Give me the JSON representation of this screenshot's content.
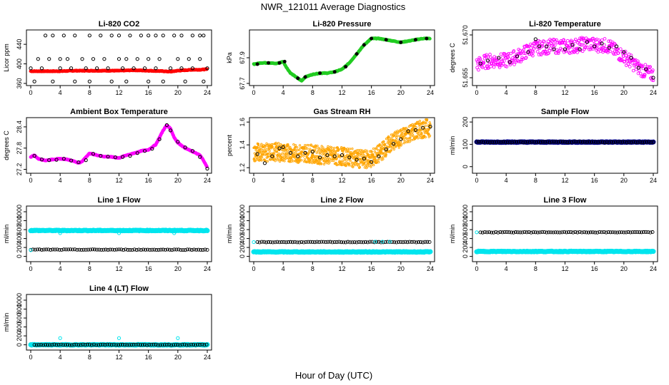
{
  "figure": {
    "title": "NWR_121011  Average Diagnostics",
    "xlabel": "Hour of Day (UTC)"
  },
  "chart_data": [
    {
      "id": "co2",
      "type": "scatter",
      "title": "Li-820 CO2",
      "xlabel": "",
      "ylabel": "Licor ppm",
      "xlim": [
        0,
        24
      ],
      "xticks": [
        0,
        4,
        8,
        12,
        16,
        20,
        24
      ],
      "ylim": [
        360,
        465
      ],
      "yticks": [
        360,
        400,
        440
      ],
      "ytick_labels": [
        "360",
        "400",
        "440"
      ],
      "series": [
        {
          "style": "red-line",
          "color": "#ff0000",
          "x": [
            0,
            2,
            4,
            6,
            8,
            10,
            12,
            14,
            16,
            18,
            19,
            20,
            21,
            22,
            23,
            24
          ],
          "y": [
            385,
            385,
            385,
            386,
            386,
            386,
            386,
            387,
            386,
            385,
            384,
            386,
            387,
            388,
            388,
            389
          ]
        },
        {
          "style": "open-circle",
          "color": "#000000",
          "x": [
            2,
            3,
            4.5,
            6,
            8,
            9.5,
            11,
            12,
            13.5,
            15,
            16,
            17,
            18,
            19.5,
            20.5,
            22,
            23,
            23.5,
            1,
            2.5,
            4,
            5,
            7,
            8.5,
            10,
            12,
            13,
            14.5,
            16,
            17.5,
            20,
            21.5,
            23,
            0,
            1.5,
            4,
            5.5,
            7.5,
            9,
            10.5,
            12.5,
            14,
            15.5,
            17,
            19,
            20.5,
            22,
            24,
            0.5,
            3,
            6,
            8,
            11,
            13,
            16,
            18,
            21,
            23.5
          ],
          "y": [
            458,
            458,
            458,
            458,
            458,
            458,
            458,
            458,
            458,
            458,
            458,
            458,
            458,
            458,
            458,
            458,
            458,
            458,
            410,
            410,
            410,
            410,
            410,
            410,
            410,
            410,
            410,
            410,
            410,
            410,
            410,
            410,
            410,
            391,
            391,
            391,
            391,
            391,
            391,
            391,
            391,
            391,
            391,
            391,
            391,
            391,
            391,
            391,
            364,
            364,
            364,
            364,
            364,
            364,
            364,
            364,
            364,
            364
          ]
        }
      ]
    },
    {
      "id": "pressure",
      "type": "scatter",
      "title": "Li-820 Pressure",
      "xlabel": "",
      "ylabel": "kPa",
      "xlim": [
        0,
        24
      ],
      "xticks": [
        0,
        4,
        8,
        12,
        16,
        20,
        24
      ],
      "ylim": [
        67.7,
        68.1
      ],
      "yticks": [
        67.7,
        67.9
      ],
      "ytick_labels": [
        "67.7",
        "67.9"
      ],
      "series": [
        {
          "style": "green-line",
          "color": "#22cc22",
          "x": [
            0,
            1,
            2,
            3,
            3.5,
            4,
            4.5,
            5,
            6,
            6.5,
            7,
            8,
            9,
            10,
            11,
            12,
            13,
            14,
            15,
            16,
            17,
            18,
            19,
            20,
            21,
            22,
            23,
            24
          ],
          "y": [
            67.85,
            67.86,
            67.86,
            67.855,
            67.86,
            67.87,
            67.82,
            67.78,
            67.74,
            67.72,
            67.75,
            67.77,
            67.78,
            67.78,
            67.79,
            67.81,
            67.86,
            67.93,
            68.0,
            68.05,
            68.05,
            68.04,
            68.03,
            68.02,
            68.03,
            68.04,
            68.05,
            68.05
          ]
        },
        {
          "style": "filled-circle",
          "color": "#000000",
          "x": [
            0.5,
            2,
            3.5,
            4.2,
            6,
            7,
            9,
            11,
            12.5,
            14,
            15,
            16,
            18,
            20,
            22,
            23.5
          ],
          "y": [
            67.85,
            67.86,
            67.86,
            67.87,
            67.74,
            67.75,
            67.78,
            67.79,
            67.83,
            67.93,
            68.0,
            68.05,
            68.04,
            68.02,
            68.04,
            68.05
          ]
        }
      ]
    },
    {
      "id": "licor_temp",
      "type": "scatter",
      "title": "Li-820 Temperature",
      "xlabel": "",
      "ylabel": "degrees C",
      "xlim": [
        0,
        24
      ],
      "xticks": [
        0,
        4,
        8,
        12,
        16,
        20,
        24
      ],
      "ylim": [
        51.653,
        51.671
      ],
      "yticks": [
        51.655,
        51.67
      ],
      "ytick_labels": [
        "51.655",
        "51.670"
      ],
      "series": [
        {
          "style": "magenta-circle-band",
          "color": "#ff00ff",
          "spread": 0.0025,
          "x": [
            0,
            1,
            2,
            3,
            4,
            5,
            6,
            7,
            8,
            9,
            10,
            11,
            12,
            13,
            14,
            15,
            16,
            17,
            18,
            19,
            20,
            21,
            22,
            23,
            24
          ],
          "y": [
            51.6595,
            51.6605,
            51.661,
            51.661,
            51.661,
            51.662,
            51.663,
            51.6645,
            51.6655,
            51.6655,
            51.666,
            51.666,
            51.666,
            51.666,
            51.6665,
            51.667,
            51.6665,
            51.6665,
            51.666,
            51.664,
            51.6625,
            51.6605,
            51.6585,
            51.657,
            51.656
          ]
        },
        {
          "style": "open-circle",
          "color": "#000000",
          "x": [
            0.5,
            1.5,
            3,
            4.5,
            5.5,
            7,
            8,
            8.5,
            9.5,
            10.5,
            12,
            13,
            14,
            15,
            16,
            17,
            18,
            19,
            20,
            21,
            22,
            23,
            24
          ],
          "y": [
            51.66,
            51.661,
            51.662,
            51.6605,
            51.6625,
            51.664,
            51.6685,
            51.666,
            51.666,
            51.665,
            51.665,
            51.6665,
            51.665,
            51.6675,
            51.666,
            51.667,
            51.6655,
            51.666,
            51.664,
            51.662,
            51.6585,
            51.658,
            51.655
          ]
        }
      ]
    },
    {
      "id": "box_temp",
      "type": "scatter",
      "title": "Ambient Box Temperature",
      "xlabel": "",
      "ylabel": "degrees C",
      "xlim": [
        0,
        24
      ],
      "xticks": [
        0,
        4,
        8,
        12,
        16,
        20,
        24
      ],
      "ylim": [
        27.15,
        28.6
      ],
      "yticks": [
        27.2,
        27.8,
        28.4
      ],
      "ytick_labels": [
        "27.2",
        "27.8",
        "28.4"
      ],
      "series": [
        {
          "style": "magenta-line",
          "color": "#ff00ff",
          "x": [
            0,
            0.5,
            1,
            2,
            3,
            4,
            5,
            6,
            6.5,
            7,
            7.5,
            8,
            9,
            10,
            11,
            12,
            13,
            14,
            15,
            16,
            17,
            18,
            18.5,
            19,
            19.5,
            20,
            21,
            22,
            23,
            23.5,
            24
          ],
          "y": [
            27.55,
            27.6,
            27.5,
            27.45,
            27.48,
            27.5,
            27.48,
            27.42,
            27.38,
            27.42,
            27.55,
            27.65,
            27.6,
            27.56,
            27.55,
            27.52,
            27.6,
            27.65,
            27.72,
            27.75,
            27.9,
            28.3,
            28.45,
            28.35,
            28.1,
            27.95,
            27.8,
            27.7,
            27.6,
            27.45,
            27.25
          ]
        },
        {
          "style": "open-circle",
          "color": "#000000",
          "x": [
            0.5,
            1.5,
            2.5,
            3.5,
            4.5,
            5.5,
            6.5,
            7.5,
            8.5,
            9.5,
            10.5,
            11.5,
            12.5,
            13.5,
            14.5,
            15.5,
            16.5,
            17.5,
            18.5,
            19,
            20,
            21,
            22,
            23,
            24
          ],
          "y": [
            27.58,
            27.48,
            27.46,
            27.47,
            27.5,
            27.45,
            27.4,
            27.46,
            27.64,
            27.58,
            27.56,
            27.54,
            27.55,
            27.58,
            27.66,
            27.72,
            27.78,
            28.05,
            28.45,
            28.3,
            27.98,
            27.82,
            27.72,
            27.55,
            27.22
          ]
        }
      ]
    },
    {
      "id": "rh",
      "type": "scatter",
      "title": "Gas Stream RH",
      "xlabel": "",
      "ylabel": "percent",
      "xlim": [
        0,
        24
      ],
      "xticks": [
        0,
        4,
        8,
        12,
        16,
        20,
        24
      ],
      "ylim": [
        1.17,
        1.62
      ],
      "yticks": [
        1.2,
        1.4,
        1.6
      ],
      "ytick_labels": [
        "1.2",
        "1.4",
        "1.6"
      ],
      "series": [
        {
          "style": "orange-dense-band",
          "color": "#ffa500",
          "spread": 0.08,
          "x": [
            0,
            1,
            2,
            3,
            4,
            5,
            6,
            7,
            8,
            9,
            10,
            11,
            12,
            13,
            14,
            15,
            16,
            17,
            18,
            19,
            20,
            21,
            22,
            23,
            24
          ],
          "y": [
            1.33,
            1.34,
            1.33,
            1.34,
            1.33,
            1.33,
            1.32,
            1.33,
            1.32,
            1.31,
            1.31,
            1.3,
            1.3,
            1.29,
            1.28,
            1.27,
            1.28,
            1.32,
            1.38,
            1.43,
            1.46,
            1.5,
            1.52,
            1.54,
            1.55
          ]
        },
        {
          "style": "open-circle",
          "color": "#000000",
          "x": [
            0.5,
            1.5,
            2.5,
            3.5,
            4,
            5,
            6,
            7,
            8,
            9,
            10,
            11,
            12,
            13,
            14,
            15,
            16,
            17,
            18,
            19,
            20,
            21,
            22,
            23,
            24
          ],
          "y": [
            1.32,
            1.24,
            1.3,
            1.37,
            1.38,
            1.33,
            1.3,
            1.33,
            1.34,
            1.29,
            1.31,
            1.3,
            1.31,
            1.29,
            1.27,
            1.28,
            1.25,
            1.3,
            1.36,
            1.41,
            1.45,
            1.52,
            1.53,
            1.55,
            1.56
          ]
        }
      ]
    },
    {
      "id": "sample_flow",
      "type": "scatter",
      "title": "Sample Flow",
      "xlabel": "",
      "ylabel": "ml/min",
      "xlim": [
        0,
        24
      ],
      "xticks": [
        0,
        4,
        8,
        12,
        16,
        20,
        24
      ],
      "ylim": [
        -20,
        210
      ],
      "yticks": [
        0,
        100,
        200
      ],
      "ytick_labels": [
        "0",
        "100",
        "200"
      ],
      "series": [
        {
          "style": "navy-dense-row",
          "color": "#00008b",
          "x_from": 0,
          "x_to": 24,
          "y": 110
        },
        {
          "style": "open-circle-row",
          "color": "#000000",
          "x_from": 0,
          "x_to": 24,
          "y": 110
        }
      ]
    },
    {
      "id": "line1",
      "type": "scatter",
      "title": "Line 1 Flow",
      "xlabel": "",
      "ylabel": "ml/min",
      "xlim": [
        0,
        24
      ],
      "xticks": [
        0,
        4,
        8,
        12,
        16,
        20,
        24
      ],
      "ylim": [
        -70,
        1080
      ],
      "yticks": [
        0,
        200,
        400,
        600,
        800,
        1000
      ],
      "ytick_labels": [
        "0",
        "200",
        "400",
        "600",
        "800",
        "1000"
      ],
      "series": [
        {
          "style": "cyan-dense-row",
          "color": "#00e5ee",
          "x_from": 0,
          "x_to": 24,
          "y": 580
        },
        {
          "style": "open-circle-row",
          "color": "#000000",
          "x_from": 0,
          "x_to": 24,
          "y": 150
        },
        {
          "style": "cyan-circle",
          "color": "#00e5ee",
          "x": [
            0,
            4,
            12,
            19.5
          ],
          "y": [
            140,
            520,
            520,
            520
          ]
        }
      ]
    },
    {
      "id": "line2",
      "type": "scatter",
      "title": "Line 2 Flow",
      "xlabel": "",
      "ylabel": "ml/min",
      "xlim": [
        0,
        24
      ],
      "xticks": [
        0,
        4,
        8,
        12,
        16,
        20,
        24
      ],
      "ylim": [
        -70,
        1080
      ],
      "yticks": [
        0,
        200,
        400,
        600,
        800,
        1000
      ],
      "ytick_labels": [
        "0",
        "200",
        "400",
        "600",
        "800",
        "1000"
      ],
      "series": [
        {
          "style": "cyan-dense-row",
          "color": "#00e5ee",
          "x_from": 0,
          "x_to": 24,
          "y": 100
        },
        {
          "style": "open-circle-row",
          "color": "#000000",
          "x_from": 0.5,
          "x_to": 24,
          "y": 320
        },
        {
          "style": "cyan-circle",
          "color": "#00e5ee",
          "x": [
            0,
            16.5,
            17.5,
            18.5
          ],
          "y": [
            320,
            330,
            330,
            330
          ]
        }
      ]
    },
    {
      "id": "line3",
      "type": "scatter",
      "title": "Line 3 Flow",
      "xlabel": "",
      "ylabel": "ml/min",
      "xlim": [
        0,
        24
      ],
      "xticks": [
        0,
        4,
        8,
        12,
        16,
        20,
        24
      ],
      "ylim": [
        -70,
        1080
      ],
      "yticks": [
        0,
        200,
        400,
        600,
        800,
        1000
      ],
      "ytick_labels": [
        "0",
        "200",
        "400",
        "600",
        "800",
        "1000"
      ],
      "series": [
        {
          "style": "cyan-dense-row",
          "color": "#00e5ee",
          "x_from": 0,
          "x_to": 24,
          "y": 110
        },
        {
          "style": "open-circle-row",
          "color": "#000000",
          "x_from": 0.5,
          "x_to": 24,
          "y": 540
        },
        {
          "style": "cyan-circle",
          "color": "#00e5ee",
          "x": [
            0,
            4,
            12,
            20
          ],
          "y": [
            540,
            100,
            100,
            100
          ]
        }
      ]
    },
    {
      "id": "line4",
      "type": "scatter",
      "title": "Line 4 (LT) Flow",
      "xlabel": "",
      "ylabel": "ml/min",
      "xlim": [
        0,
        24
      ],
      "xticks": [
        0,
        4,
        8,
        12,
        16,
        20,
        24
      ],
      "ylim": [
        -70,
        1080
      ],
      "yticks": [
        0,
        200,
        400,
        600,
        800,
        1000
      ],
      "ytick_labels": [
        "0",
        "200",
        "400",
        "600",
        "800",
        "1000"
      ],
      "series": [
        {
          "style": "cyan-dense-row",
          "color": "#00e5ee",
          "x_from": 0,
          "x_to": 24,
          "y": 0
        },
        {
          "style": "open-circle-row",
          "color": "#000000",
          "x_from": 0.5,
          "x_to": 24,
          "y": 0
        },
        {
          "style": "cyan-circle",
          "color": "#00e5ee",
          "x": [
            0,
            4,
            12,
            20
          ],
          "y": [
            10,
            150,
            150,
            150
          ]
        }
      ]
    }
  ]
}
